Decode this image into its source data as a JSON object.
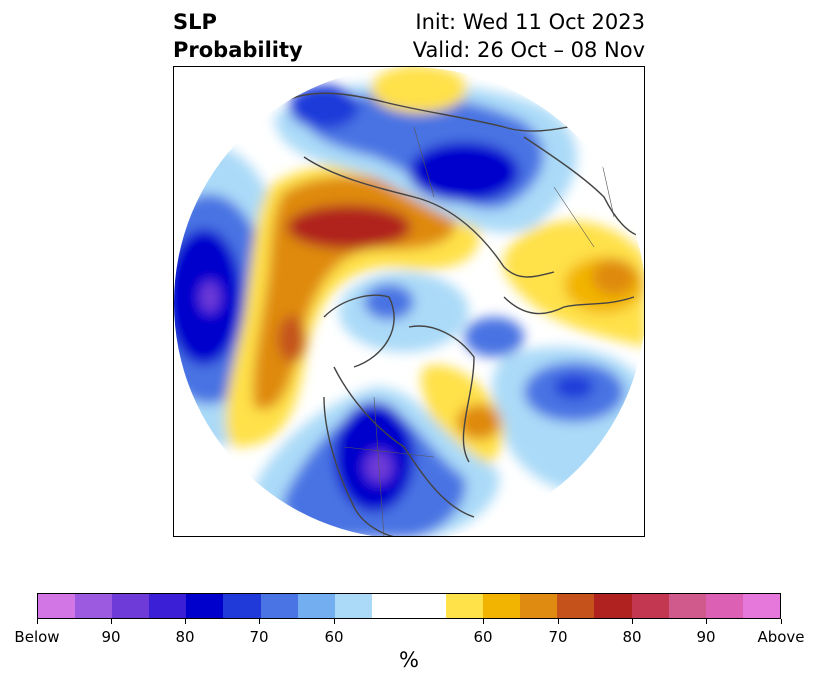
{
  "title": {
    "left_line1": "SLP",
    "left_line2": "Probability",
    "right_line1": "Init: Wed 11 Oct 2023",
    "right_line2": "Valid: 26 Oct – 08 Nov"
  },
  "colorbar": {
    "colors": [
      "#d276e6",
      "#9b5ae0",
      "#6e3bd8",
      "#3a1fd6",
      "#0000cd",
      "#1f3ad9",
      "#4a73e3",
      "#72aef0",
      "#aadaf8",
      "#ffffff",
      "#ffe14a",
      "#f2b400",
      "#df8a10",
      "#c4521a",
      "#b0221f",
      "#c33850",
      "#d05a8c",
      "#dc60b4",
      "#e678dc"
    ],
    "tick_labels": [
      "Below",
      "90",
      "80",
      "70",
      "60",
      "60",
      "70",
      "80",
      "90",
      "Above"
    ],
    "unit": "%"
  }
}
